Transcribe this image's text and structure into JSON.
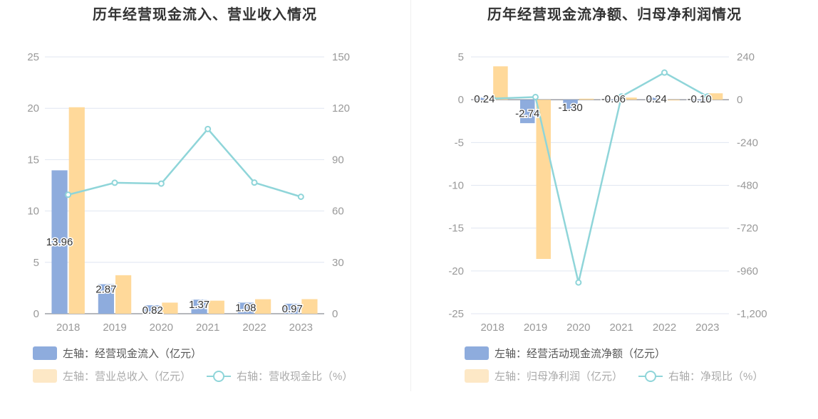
{
  "colors": {
    "bar_primary": "#8eacdd",
    "bar_secondary": "#ffd99a",
    "bar_secondary_legend": "#fde8c6",
    "line": "#8fd5d9",
    "axis_text": "#999999",
    "grid": "#e0e6f1"
  },
  "charts": [
    {
      "title": "历年经营现金流入、营业收入情况",
      "legend": [
        {
          "label": "左轴：经营现金流入（亿元）",
          "kind": "bar",
          "color": "#8eacdd"
        },
        {
          "label": "左轴：营业总收入（亿元）",
          "kind": "bar",
          "color": "#fde8c6"
        },
        {
          "label": "右轴：营收现金比（%）",
          "kind": "line",
          "color": "#8fd5d9"
        }
      ]
    },
    {
      "title": "历年经营现金流净额、归母净利润情况",
      "legend": [
        {
          "label": "左轴：经营活动现金流净额（亿元）",
          "kind": "bar",
          "color": "#8eacdd"
        },
        {
          "label": "左轴：归母净利润（亿元）",
          "kind": "bar",
          "color": "#fde8c6"
        },
        {
          "label": "右轴：净现比（%）",
          "kind": "line",
          "color": "#8fd5d9"
        }
      ]
    }
  ],
  "chart_data": [
    {
      "type": "bar",
      "title": "历年经营现金流入、营业收入情况",
      "categories": [
        "2018",
        "2019",
        "2020",
        "2021",
        "2022",
        "2023"
      ],
      "y_left": {
        "ticks": [
          "0",
          "5",
          "10",
          "15",
          "20",
          "25"
        ],
        "range": [
          0,
          25
        ]
      },
      "y_right": {
        "ticks": [
          "0",
          "30",
          "60",
          "90",
          "120",
          "150"
        ],
        "range": [
          0,
          150
        ]
      },
      "series": [
        {
          "name": "经营现金流入",
          "type": "bar",
          "axis": "left",
          "values": [
            13.96,
            2.87,
            0.82,
            1.37,
            1.08,
            0.97
          ],
          "labels": [
            "13.96",
            "2.87",
            "0.82",
            "1.37",
            "1.08",
            "0.97"
          ]
        },
        {
          "name": "营业总收入",
          "type": "bar",
          "axis": "left",
          "values": [
            20.1,
            3.75,
            1.08,
            1.27,
            1.41,
            1.42
          ]
        },
        {
          "name": "营收现金比",
          "type": "line",
          "axis": "right",
          "values": [
            69.5,
            76.5,
            76.0,
            107.9,
            76.6,
            68.3
          ]
        }
      ],
      "grid": true,
      "legend_position": "bottom-left"
    },
    {
      "type": "bar",
      "title": "历年经营现金流净额、归母净利润情况",
      "categories": [
        "2018",
        "2019",
        "2020",
        "2021",
        "2022",
        "2023"
      ],
      "y_left": {
        "ticks": [
          "-25",
          "-20",
          "-15",
          "-10",
          "-5",
          "0",
          "5"
        ],
        "range": [
          -25,
          5
        ]
      },
      "y_right": {
        "ticks": [
          "-1,200",
          "-960",
          "-720",
          "-480",
          "-240",
          "0",
          "240"
        ],
        "range": [
          -1200,
          240
        ]
      },
      "series": [
        {
          "name": "经营活动现金流净额",
          "type": "bar",
          "axis": "left",
          "values": [
            0.24,
            -2.74,
            -1.3,
            -0.06,
            0.24,
            -0.1
          ],
          "labels": [
            "0.24",
            "-2.74",
            "-1.30",
            "-0.06",
            "0.24",
            "-0.10"
          ]
        },
        {
          "name": "归母净利润",
          "type": "bar",
          "axis": "left",
          "values": [
            3.9,
            -18.6,
            0.12,
            0.25,
            -0.07,
            0.75
          ]
        },
        {
          "name": "净现比",
          "type": "line",
          "axis": "right",
          "values": [
            6,
            15,
            -1025,
            18,
            152,
            18
          ]
        }
      ],
      "grid": true,
      "legend_position": "bottom-left"
    }
  ]
}
